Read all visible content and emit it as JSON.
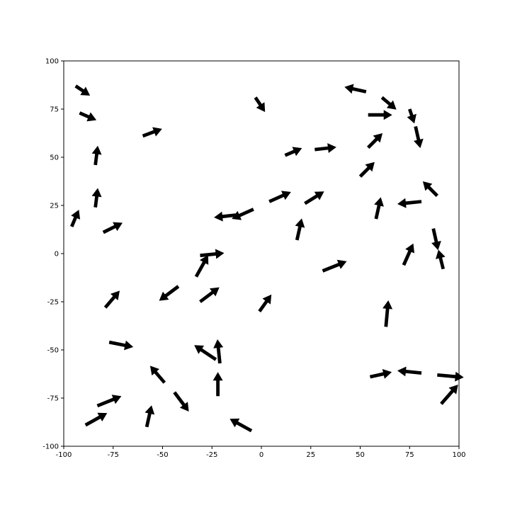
{
  "chart_data": {
    "type": "quiver",
    "title": "",
    "xlabel": "",
    "ylabel": "",
    "xlim": [
      -100,
      100
    ],
    "ylim": [
      -100,
      100
    ],
    "x_ticks": [
      -100,
      -75,
      -50,
      -25,
      0,
      25,
      50,
      75,
      100
    ],
    "y_ticks": [
      -100,
      -75,
      -50,
      -25,
      0,
      25,
      50,
      75,
      100
    ],
    "grid": false,
    "arrow_color": "#000000",
    "arrows": [
      {
        "x": -94,
        "y": 87,
        "dx": 6,
        "dy": -4
      },
      {
        "x": -92,
        "y": 73,
        "dx": 7,
        "dy": -3
      },
      {
        "x": -60,
        "y": 61,
        "dx": 8,
        "dy": 3
      },
      {
        "x": -84,
        "y": 46,
        "dx": 1,
        "dy": 8
      },
      {
        "x": -84,
        "y": 24,
        "dx": 1,
        "dy": 8
      },
      {
        "x": -96,
        "y": 14,
        "dx": 3,
        "dy": 7
      },
      {
        "x": -80,
        "y": 11,
        "dx": 8,
        "dy": 4
      },
      {
        "x": -3,
        "y": 81,
        "dx": 4,
        "dy": -6
      },
      {
        "x": 12,
        "y": 51,
        "dx": 7,
        "dy": 3
      },
      {
        "x": 27,
        "y": 54,
        "dx": 9,
        "dy": 1
      },
      {
        "x": 53,
        "y": 84,
        "dx": -9,
        "dy": 2
      },
      {
        "x": 61,
        "y": 81,
        "dx": 6,
        "dy": -5
      },
      {
        "x": 54,
        "y": 72,
        "dx": 10,
        "dy": 0
      },
      {
        "x": 75,
        "y": 75,
        "dx": 2,
        "dy": -6
      },
      {
        "x": 78,
        "y": 66,
        "dx": 2,
        "dy": -9
      },
      {
        "x": 54,
        "y": 55,
        "dx": 6,
        "dy": 6
      },
      {
        "x": 50,
        "y": 40,
        "dx": 6,
        "dy": 6
      },
      {
        "x": 4,
        "y": 27,
        "dx": 9,
        "dy": 4
      },
      {
        "x": 22,
        "y": 26,
        "dx": 8,
        "dy": 5
      },
      {
        "x": -4,
        "y": 23,
        "dx": -9,
        "dy": -4
      },
      {
        "x": -13,
        "y": 20,
        "dx": -9,
        "dy": -1
      },
      {
        "x": 18,
        "y": 7,
        "dx": 2,
        "dy": 9
      },
      {
        "x": 58,
        "y": 18,
        "dx": 2,
        "dy": 9
      },
      {
        "x": 81,
        "y": 27,
        "dx": -10,
        "dy": -1
      },
      {
        "x": 89,
        "y": 30,
        "dx": -6,
        "dy": 6
      },
      {
        "x": 87,
        "y": 13,
        "dx": 2,
        "dy": -9
      },
      {
        "x": 92,
        "y": -8,
        "dx": -2,
        "dy": 8
      },
      {
        "x": 72,
        "y": -6,
        "dx": 4,
        "dy": 9
      },
      {
        "x": 31,
        "y": -9,
        "dx": 10,
        "dy": 4
      },
      {
        "x": -31,
        "y": -1,
        "dx": 10,
        "dy": 1
      },
      {
        "x": -33,
        "y": -12,
        "dx": 5,
        "dy": 9
      },
      {
        "x": -42,
        "y": -17,
        "dx": -8,
        "dy": -6
      },
      {
        "x": -31,
        "y": -25,
        "dx": 8,
        "dy": 6
      },
      {
        "x": -1,
        "y": -30,
        "dx": 5,
        "dy": 7
      },
      {
        "x": -79,
        "y": -28,
        "dx": 6,
        "dy": 7
      },
      {
        "x": 63,
        "y": -38,
        "dx": 1,
        "dy": 11
      },
      {
        "x": -77,
        "y": -46,
        "dx": 10,
        "dy": -2
      },
      {
        "x": -23,
        "y": -55,
        "dx": -9,
        "dy": 6
      },
      {
        "x": -21,
        "y": -57,
        "dx": -1,
        "dy": 10
      },
      {
        "x": -22,
        "y": -74,
        "dx": 0,
        "dy": 10
      },
      {
        "x": -49,
        "y": -67,
        "dx": -6,
        "dy": 7
      },
      {
        "x": -44,
        "y": -72,
        "dx": 6,
        "dy": -8
      },
      {
        "x": 55,
        "y": -64,
        "dx": 9,
        "dy": 2
      },
      {
        "x": 81,
        "y": -62,
        "dx": -10,
        "dy": 1
      },
      {
        "x": 89,
        "y": -63,
        "dx": 11,
        "dy": -1
      },
      {
        "x": 91,
        "y": -78,
        "dx": 7,
        "dy": 8
      },
      {
        "x": -83,
        "y": -79,
        "dx": 10,
        "dy": 4
      },
      {
        "x": -89,
        "y": -89,
        "dx": 9,
        "dy": 5
      },
      {
        "x": -58,
        "y": -90,
        "dx": 2,
        "dy": 9
      },
      {
        "x": -5,
        "y": -92,
        "dx": -9,
        "dy": 5
      }
    ]
  }
}
